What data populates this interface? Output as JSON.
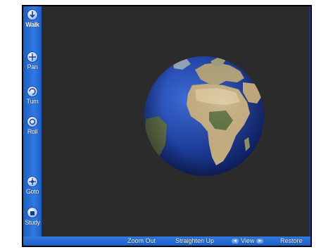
{
  "toolbar": {
    "walk": "Walk",
    "pan": "Pan",
    "turn": "Turn",
    "roll": "Roll",
    "goto": "Goto",
    "study": "Study"
  },
  "bottom": {
    "zoom_out": "Zoom Out",
    "straighten_up": "Straighten Up",
    "view": "View",
    "restore": "Restore"
  },
  "scene": {
    "object": "globe-earth",
    "background": "#2b2b2b",
    "accent": "#1b5fc8"
  }
}
